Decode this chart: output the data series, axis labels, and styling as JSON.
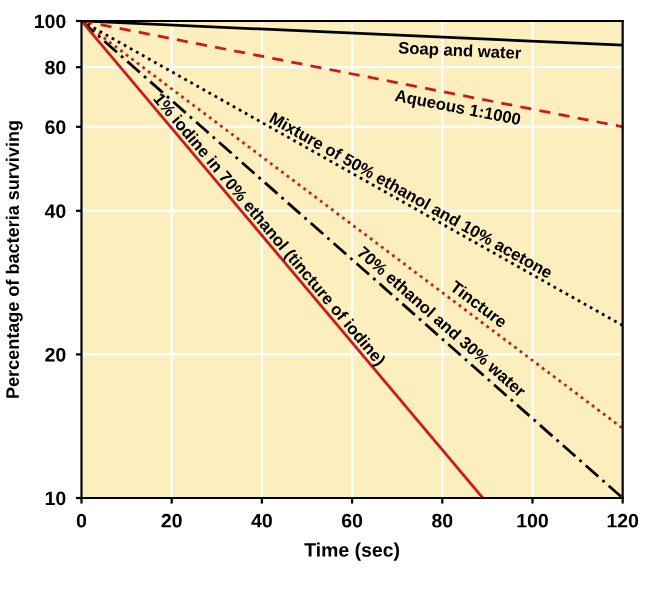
{
  "chart_data": {
    "type": "line",
    "xlabel": "Time (sec)",
    "ylabel": "Percentage of bacteria surviving",
    "log": "y",
    "xlim": [
      0,
      120
    ],
    "ylim": [
      10,
      100
    ],
    "xticks": [
      0,
      20,
      40,
      60,
      80,
      100,
      120
    ],
    "yticks": [
      10,
      20,
      40,
      60,
      80,
      100
    ],
    "grid": true,
    "marker": "none",
    "series": [
      {
        "name": "Soap and water",
        "color": "#000000",
        "line_style": "solid",
        "x": [
          0,
          120
        ],
        "values": [
          100,
          89
        ]
      },
      {
        "name": "Aqueous 1:1000",
        "color": "#cc1a1a",
        "line_style": "dashed",
        "x": [
          0,
          120
        ],
        "values": [
          100,
          60
        ]
      },
      {
        "name": "Mixture of 50% ethanol and 10% acetone",
        "color": "#000000",
        "line_style": "dotted",
        "x": [
          0,
          120
        ],
        "values": [
          100,
          23
        ]
      },
      {
        "name": "Tincture",
        "color": "#cc1a1a",
        "line_style": "dotted",
        "x": [
          0,
          120
        ],
        "values": [
          100,
          14
        ]
      },
      {
        "name": "70% ethanol and 30% water",
        "color": "#000000",
        "line_style": "dashdot",
        "x": [
          0,
          120
        ],
        "values": [
          100,
          10
        ]
      },
      {
        "name": "1% iodine in 70% ethanol (tincture of iodine)",
        "color": "#cc1a1a",
        "line_style": "solid",
        "x": [
          0,
          89
        ],
        "values": [
          100,
          10
        ]
      }
    ]
  }
}
